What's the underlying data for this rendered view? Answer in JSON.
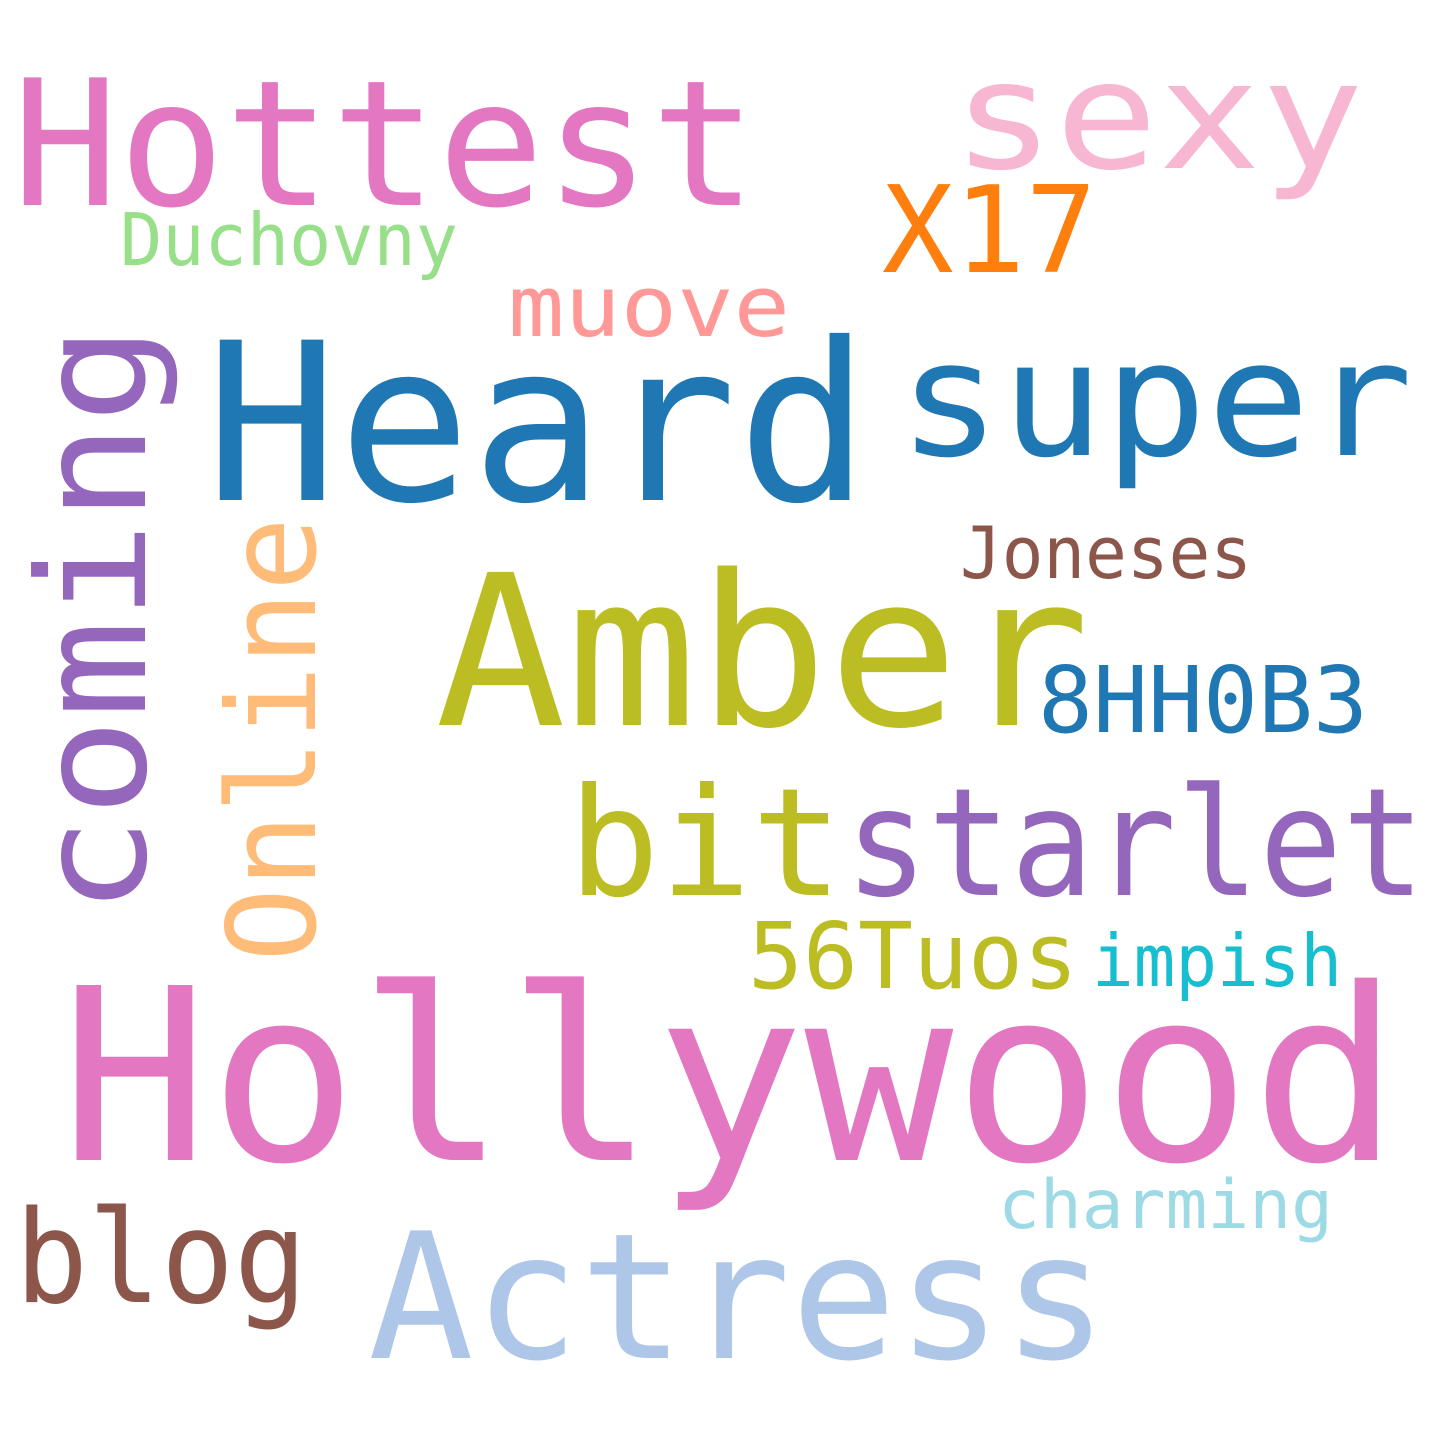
{
  "word_cloud": {
    "background": "#ffffff",
    "words": [
      {
        "id": "hollywood",
        "text": "Hollywood",
        "color": "#e377c2"
      },
      {
        "id": "heard",
        "text": "Heard",
        "color": "#1f77b4"
      },
      {
        "id": "amber",
        "text": "Amber",
        "color": "#bcbd22"
      },
      {
        "id": "hottest",
        "text": "Hottest",
        "color": "#e377c2"
      },
      {
        "id": "actress",
        "text": "Actress",
        "color": "#aec7e8"
      },
      {
        "id": "super",
        "text": "super",
        "color": "#1f77b4"
      },
      {
        "id": "bitstarlet-bit",
        "text": "bit",
        "color": "#bcbd22"
      },
      {
        "id": "bitstarlet-starlet",
        "text": "starlet",
        "color": "#9467bd"
      },
      {
        "id": "coming",
        "text": "coming",
        "color": "#9467bd"
      },
      {
        "id": "sexy",
        "text": "sexy",
        "color": "#f7b6d2"
      },
      {
        "id": "online",
        "text": "Online",
        "color": "#ffbb78"
      },
      {
        "id": "blog",
        "text": "blog",
        "color": "#8c564b"
      },
      {
        "id": "x17",
        "text": "X17",
        "color": "#ff7f0e"
      },
      {
        "id": "8hh0b3",
        "text": "8HH0B3",
        "color": "#1f77b4"
      },
      {
        "id": "56tuos",
        "text": "56Tuos",
        "color": "#bcbd22"
      },
      {
        "id": "muove",
        "text": "muove",
        "color": "#ff9896"
      },
      {
        "id": "joneses",
        "text": "Joneses",
        "color": "#8c564b"
      },
      {
        "id": "duchovny",
        "text": "Duchovny",
        "color": "#98df8a"
      },
      {
        "id": "impish",
        "text": "impish",
        "color": "#17becf"
      },
      {
        "id": "charming",
        "text": "charming",
        "color": "#9edae5"
      }
    ]
  }
}
